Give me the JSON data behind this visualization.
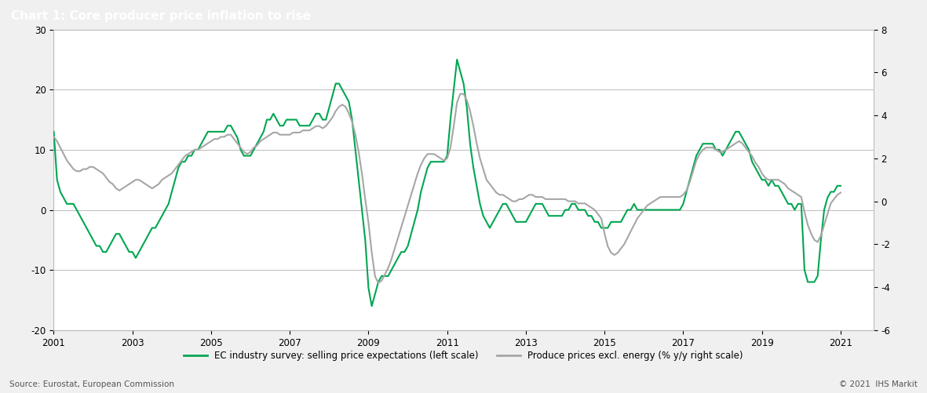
{
  "title": "Chart 1: Core producer price inflation to rise",
  "title_bg_color": "#808080",
  "title_text_color": "#ffffff",
  "bg_color": "#f0f0f0",
  "plot_bg_color": "#ffffff",
  "grid_color": "#bbbbbb",
  "source_text": "Source: Eurostat, European Commission",
  "copyright_text": "© 2021  IHS Markit",
  "left_ylim": [
    -20,
    30
  ],
  "right_ylim": [
    -6,
    8
  ],
  "left_yticks": [
    -20,
    -10,
    0,
    10,
    20,
    30
  ],
  "right_yticks": [
    -6,
    -4,
    -2,
    0,
    2,
    4,
    6,
    8
  ],
  "green_color": "#00a651",
  "gray_color": "#a6a6a6",
  "legend_green": "EC industry survey: selling price expectations (left scale)",
  "legend_gray": "Produce prices excl. energy (% y/y right scale)",
  "green_series": {
    "dates": [
      2001.0,
      2001.083,
      2001.167,
      2001.25,
      2001.333,
      2001.417,
      2001.5,
      2001.583,
      2001.667,
      2001.75,
      2001.833,
      2001.917,
      2002.0,
      2002.083,
      2002.167,
      2002.25,
      2002.333,
      2002.417,
      2002.5,
      2002.583,
      2002.667,
      2002.75,
      2002.833,
      2002.917,
      2003.0,
      2003.083,
      2003.167,
      2003.25,
      2003.333,
      2003.417,
      2003.5,
      2003.583,
      2003.667,
      2003.75,
      2003.833,
      2003.917,
      2004.0,
      2004.083,
      2004.167,
      2004.25,
      2004.333,
      2004.417,
      2004.5,
      2004.583,
      2004.667,
      2004.75,
      2004.833,
      2004.917,
      2005.0,
      2005.083,
      2005.167,
      2005.25,
      2005.333,
      2005.417,
      2005.5,
      2005.583,
      2005.667,
      2005.75,
      2005.833,
      2005.917,
      2006.0,
      2006.083,
      2006.167,
      2006.25,
      2006.333,
      2006.417,
      2006.5,
      2006.583,
      2006.667,
      2006.75,
      2006.833,
      2006.917,
      2007.0,
      2007.083,
      2007.167,
      2007.25,
      2007.333,
      2007.417,
      2007.5,
      2007.583,
      2007.667,
      2007.75,
      2007.833,
      2007.917,
      2008.0,
      2008.083,
      2008.167,
      2008.25,
      2008.333,
      2008.417,
      2008.5,
      2008.583,
      2008.667,
      2008.75,
      2008.833,
      2008.917,
      2009.0,
      2009.083,
      2009.167,
      2009.25,
      2009.333,
      2009.417,
      2009.5,
      2009.583,
      2009.667,
      2009.75,
      2009.833,
      2009.917,
      2010.0,
      2010.083,
      2010.167,
      2010.25,
      2010.333,
      2010.417,
      2010.5,
      2010.583,
      2010.667,
      2010.75,
      2010.833,
      2010.917,
      2011.0,
      2011.083,
      2011.167,
      2011.25,
      2011.333,
      2011.417,
      2011.5,
      2011.583,
      2011.667,
      2011.75,
      2011.833,
      2011.917,
      2012.0,
      2012.083,
      2012.167,
      2012.25,
      2012.333,
      2012.417,
      2012.5,
      2012.583,
      2012.667,
      2012.75,
      2012.833,
      2012.917,
      2013.0,
      2013.083,
      2013.167,
      2013.25,
      2013.333,
      2013.417,
      2013.5,
      2013.583,
      2013.667,
      2013.75,
      2013.833,
      2013.917,
      2014.0,
      2014.083,
      2014.167,
      2014.25,
      2014.333,
      2014.417,
      2014.5,
      2014.583,
      2014.667,
      2014.75,
      2014.833,
      2014.917,
      2015.0,
      2015.083,
      2015.167,
      2015.25,
      2015.333,
      2015.417,
      2015.5,
      2015.583,
      2015.667,
      2015.75,
      2015.833,
      2015.917,
      2016.0,
      2016.083,
      2016.167,
      2016.25,
      2016.333,
      2016.417,
      2016.5,
      2016.583,
      2016.667,
      2016.75,
      2016.833,
      2016.917,
      2017.0,
      2017.083,
      2017.167,
      2017.25,
      2017.333,
      2017.417,
      2017.5,
      2017.583,
      2017.667,
      2017.75,
      2017.833,
      2017.917,
      2018.0,
      2018.083,
      2018.167,
      2018.25,
      2018.333,
      2018.417,
      2018.5,
      2018.583,
      2018.667,
      2018.75,
      2018.833,
      2018.917,
      2019.0,
      2019.083,
      2019.167,
      2019.25,
      2019.333,
      2019.417,
      2019.5,
      2019.583,
      2019.667,
      2019.75,
      2019.833,
      2019.917,
      2020.0,
      2020.083,
      2020.167,
      2020.25,
      2020.333,
      2020.417,
      2020.5,
      2020.583,
      2020.667,
      2020.75,
      2020.833,
      2020.917,
      2021.0
    ],
    "values": [
      13,
      5,
      3,
      2,
      1,
      1,
      1,
      0,
      -1,
      -2,
      -3,
      -4,
      -5,
      -6,
      -6,
      -7,
      -7,
      -6,
      -5,
      -4,
      -4,
      -5,
      -6,
      -7,
      -7,
      -8,
      -7,
      -6,
      -5,
      -4,
      -3,
      -3,
      -2,
      -1,
      0,
      1,
      3,
      5,
      7,
      8,
      8,
      9,
      9,
      10,
      10,
      11,
      12,
      13,
      13,
      13,
      13,
      13,
      13,
      14,
      14,
      13,
      12,
      10,
      9,
      9,
      9,
      10,
      11,
      12,
      13,
      15,
      15,
      16,
      15,
      14,
      14,
      15,
      15,
      15,
      15,
      14,
      14,
      14,
      14,
      15,
      16,
      16,
      15,
      15,
      17,
      19,
      21,
      21,
      20,
      19,
      18,
      15,
      10,
      5,
      0,
      -5,
      -13,
      -16,
      -14,
      -12,
      -11,
      -11,
      -11,
      -10,
      -9,
      -8,
      -7,
      -7,
      -6,
      -4,
      -2,
      0,
      3,
      5,
      7,
      8,
      8,
      8,
      8,
      8,
      9,
      15,
      20,
      25,
      23,
      21,
      17,
      11,
      7,
      4,
      1,
      -1,
      -2,
      -3,
      -2,
      -1,
      0,
      1,
      1,
      0,
      -1,
      -2,
      -2,
      -2,
      -2,
      -1,
      0,
      1,
      1,
      1,
      0,
      -1,
      -1,
      -1,
      -1,
      -1,
      0,
      0,
      1,
      1,
      0,
      0,
      0,
      -1,
      -1,
      -2,
      -2,
      -3,
      -3,
      -3,
      -2,
      -2,
      -2,
      -2,
      -1,
      0,
      0,
      1,
      0,
      0,
      0,
      0,
      0,
      0,
      0,
      0,
      0,
      0,
      0,
      0,
      0,
      0,
      1,
      3,
      5,
      7,
      9,
      10,
      11,
      11,
      11,
      11,
      10,
      10,
      9,
      10,
      11,
      12,
      13,
      13,
      12,
      11,
      10,
      8,
      7,
      6,
      5,
      5,
      4,
      5,
      4,
      4,
      3,
      2,
      1,
      1,
      0,
      1,
      1,
      -10,
      -12,
      -12,
      -12,
      -11,
      -5,
      0,
      2,
      3,
      3,
      4,
      4
    ]
  },
  "gray_series": {
    "dates": [
      2001.0,
      2001.083,
      2001.167,
      2001.25,
      2001.333,
      2001.417,
      2001.5,
      2001.583,
      2001.667,
      2001.75,
      2001.833,
      2001.917,
      2002.0,
      2002.083,
      2002.167,
      2002.25,
      2002.333,
      2002.417,
      2002.5,
      2002.583,
      2002.667,
      2002.75,
      2002.833,
      2002.917,
      2003.0,
      2003.083,
      2003.167,
      2003.25,
      2003.333,
      2003.417,
      2003.5,
      2003.583,
      2003.667,
      2003.75,
      2003.833,
      2003.917,
      2004.0,
      2004.083,
      2004.167,
      2004.25,
      2004.333,
      2004.417,
      2004.5,
      2004.583,
      2004.667,
      2004.75,
      2004.833,
      2004.917,
      2005.0,
      2005.083,
      2005.167,
      2005.25,
      2005.333,
      2005.417,
      2005.5,
      2005.583,
      2005.667,
      2005.75,
      2005.833,
      2005.917,
      2006.0,
      2006.083,
      2006.167,
      2006.25,
      2006.333,
      2006.417,
      2006.5,
      2006.583,
      2006.667,
      2006.75,
      2006.833,
      2006.917,
      2007.0,
      2007.083,
      2007.167,
      2007.25,
      2007.333,
      2007.417,
      2007.5,
      2007.583,
      2007.667,
      2007.75,
      2007.833,
      2007.917,
      2008.0,
      2008.083,
      2008.167,
      2008.25,
      2008.333,
      2008.417,
      2008.5,
      2008.583,
      2008.667,
      2008.75,
      2008.833,
      2008.917,
      2009.0,
      2009.083,
      2009.167,
      2009.25,
      2009.333,
      2009.417,
      2009.5,
      2009.583,
      2009.667,
      2009.75,
      2009.833,
      2009.917,
      2010.0,
      2010.083,
      2010.167,
      2010.25,
      2010.333,
      2010.417,
      2010.5,
      2010.583,
      2010.667,
      2010.75,
      2010.833,
      2010.917,
      2011.0,
      2011.083,
      2011.167,
      2011.25,
      2011.333,
      2011.417,
      2011.5,
      2011.583,
      2011.667,
      2011.75,
      2011.833,
      2011.917,
      2012.0,
      2012.083,
      2012.167,
      2012.25,
      2012.333,
      2012.417,
      2012.5,
      2012.583,
      2012.667,
      2012.75,
      2012.833,
      2012.917,
      2013.0,
      2013.083,
      2013.167,
      2013.25,
      2013.333,
      2013.417,
      2013.5,
      2013.583,
      2013.667,
      2013.75,
      2013.833,
      2013.917,
      2014.0,
      2014.083,
      2014.167,
      2014.25,
      2014.333,
      2014.417,
      2014.5,
      2014.583,
      2014.667,
      2014.75,
      2014.833,
      2014.917,
      2015.0,
      2015.083,
      2015.167,
      2015.25,
      2015.333,
      2015.417,
      2015.5,
      2015.583,
      2015.667,
      2015.75,
      2015.833,
      2015.917,
      2016.0,
      2016.083,
      2016.167,
      2016.25,
      2016.333,
      2016.417,
      2016.5,
      2016.583,
      2016.667,
      2016.75,
      2016.833,
      2016.917,
      2017.0,
      2017.083,
      2017.167,
      2017.25,
      2017.333,
      2017.417,
      2017.5,
      2017.583,
      2017.667,
      2017.75,
      2017.833,
      2017.917,
      2018.0,
      2018.083,
      2018.167,
      2018.25,
      2018.333,
      2018.417,
      2018.5,
      2018.583,
      2018.667,
      2018.75,
      2018.833,
      2018.917,
      2019.0,
      2019.083,
      2019.167,
      2019.25,
      2019.333,
      2019.417,
      2019.5,
      2019.583,
      2019.667,
      2019.75,
      2019.833,
      2019.917,
      2020.0,
      2020.083,
      2020.167,
      2020.25,
      2020.333,
      2020.417,
      2020.5,
      2020.583,
      2020.667,
      2020.75,
      2020.833,
      2020.917,
      2021.0
    ],
    "values": [
      3.0,
      2.8,
      2.5,
      2.2,
      1.9,
      1.7,
      1.5,
      1.4,
      1.4,
      1.5,
      1.5,
      1.6,
      1.6,
      1.5,
      1.4,
      1.3,
      1.1,
      0.9,
      0.8,
      0.6,
      0.5,
      0.6,
      0.7,
      0.8,
      0.9,
      1.0,
      1.0,
      0.9,
      0.8,
      0.7,
      0.6,
      0.7,
      0.8,
      1.0,
      1.1,
      1.2,
      1.3,
      1.5,
      1.7,
      1.9,
      2.1,
      2.2,
      2.3,
      2.4,
      2.4,
      2.5,
      2.6,
      2.7,
      2.8,
      2.9,
      2.9,
      3.0,
      3.0,
      3.1,
      3.1,
      2.9,
      2.7,
      2.5,
      2.3,
      2.2,
      2.3,
      2.5,
      2.6,
      2.8,
      2.9,
      3.0,
      3.1,
      3.2,
      3.2,
      3.1,
      3.1,
      3.1,
      3.1,
      3.2,
      3.2,
      3.2,
      3.3,
      3.3,
      3.3,
      3.4,
      3.5,
      3.5,
      3.4,
      3.5,
      3.7,
      3.9,
      4.2,
      4.4,
      4.5,
      4.4,
      4.1,
      3.7,
      3.1,
      2.3,
      1.3,
      0.1,
      -1.0,
      -2.4,
      -3.5,
      -3.8,
      -3.7,
      -3.4,
      -3.1,
      -2.7,
      -2.2,
      -1.7,
      -1.2,
      -0.7,
      -0.2,
      0.3,
      0.8,
      1.3,
      1.7,
      2.0,
      2.2,
      2.2,
      2.2,
      2.1,
      2.0,
      1.9,
      2.0,
      2.5,
      3.5,
      4.6,
      5.0,
      5.0,
      4.7,
      4.2,
      3.5,
      2.7,
      2.0,
      1.5,
      1.0,
      0.8,
      0.6,
      0.4,
      0.3,
      0.3,
      0.2,
      0.1,
      0.0,
      0.0,
      0.1,
      0.1,
      0.2,
      0.3,
      0.3,
      0.2,
      0.2,
      0.2,
      0.1,
      0.1,
      0.1,
      0.1,
      0.1,
      0.1,
      0.1,
      0.0,
      0.0,
      0.0,
      -0.1,
      -0.1,
      -0.1,
      -0.2,
      -0.3,
      -0.4,
      -0.6,
      -0.8,
      -1.5,
      -2.1,
      -2.4,
      -2.5,
      -2.4,
      -2.2,
      -2.0,
      -1.7,
      -1.4,
      -1.1,
      -0.8,
      -0.6,
      -0.4,
      -0.2,
      -0.1,
      0.0,
      0.1,
      0.2,
      0.2,
      0.2,
      0.2,
      0.2,
      0.2,
      0.2,
      0.3,
      0.5,
      0.9,
      1.4,
      1.9,
      2.2,
      2.4,
      2.5,
      2.5,
      2.5,
      2.4,
      2.3,
      2.3,
      2.4,
      2.5,
      2.6,
      2.7,
      2.8,
      2.7,
      2.5,
      2.3,
      2.1,
      1.8,
      1.6,
      1.3,
      1.1,
      1.0,
      1.0,
      1.0,
      1.0,
      0.9,
      0.8,
      0.6,
      0.5,
      0.4,
      0.3,
      0.2,
      -0.5,
      -1.1,
      -1.5,
      -1.8,
      -1.9,
      -1.6,
      -1.1,
      -0.6,
      -0.1,
      0.1,
      0.3,
      0.4
    ]
  }
}
